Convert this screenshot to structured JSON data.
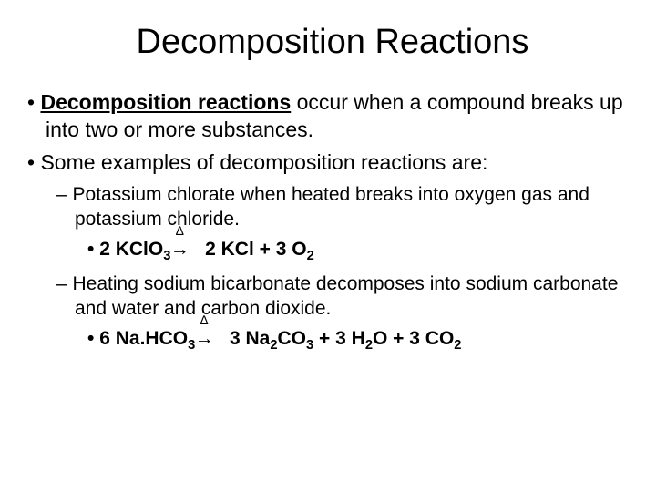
{
  "title": "Decomposition Reactions",
  "b1a_bold": "Decomposition reactions",
  "b1a_rest": " occur when a compound breaks up into two or more substances.",
  "b1b": "Some examples of decomposition reactions are:",
  "b2a": "Potassium chlorate when heated breaks into oxygen gas and potassium chloride.",
  "b2b": "Heating sodium bicarbonate decomposes into sodium carbonate and water and carbon dioxide.",
  "eq1_l_coef": "2",
  "eq1_l_comp": "KClO",
  "eq1_l_sub": "3",
  "eq1_r1_coef": "2",
  "eq1_r1_comp": "KCl",
  "eq1_plus": " + ",
  "eq1_r2_coef": "3",
  "eq1_r2_comp": "O",
  "eq1_r2_sub": "2",
  "eq2_l_coef": "6",
  "eq2_l_comp": "Na.HCO",
  "eq2_l_sub": "3",
  "eq2_r1_coef": "3",
  "eq2_r1_comp": "Na",
  "eq2_r1_sub1": "2",
  "eq2_r1_comp2": "CO",
  "eq2_r1_sub2": "3",
  "eq2_r2_coef": "3",
  "eq2_r2_comp": "H",
  "eq2_r2_sub": "2",
  "eq2_r2_comp2": "O",
  "eq2_r3_coef": "3",
  "eq2_r3_comp": "CO",
  "eq2_r3_sub": "2",
  "delta": "∆",
  "arrow": "→"
}
